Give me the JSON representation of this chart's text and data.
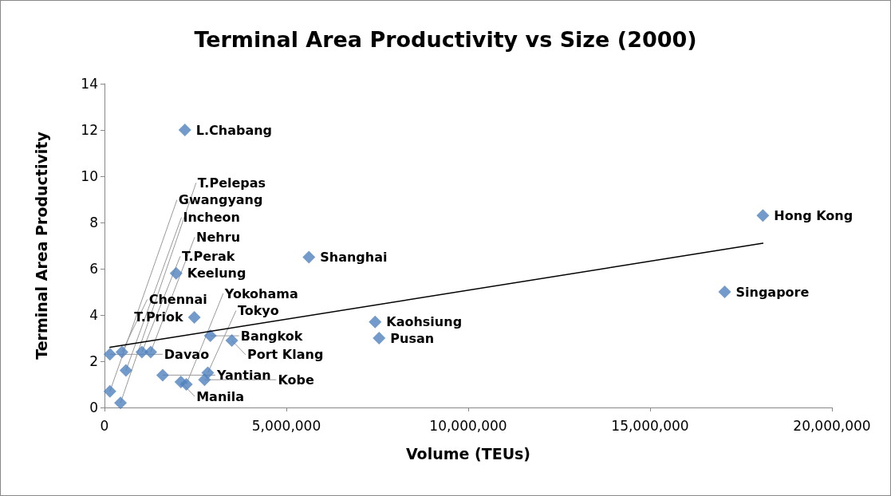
{
  "chart_data": {
    "type": "scatter",
    "title": "Terminal Area Productivity vs Size (2000)",
    "xlabel": "Volume (TEUs)",
    "ylabel": "Terminal Area Productivity",
    "xlim": [
      0,
      20000000
    ],
    "xticks": [
      {
        "value": 0,
        "label": "0"
      },
      {
        "value": 5000000,
        "label": "5,000,000"
      },
      {
        "value": 10000000,
        "label": "10,000,000"
      },
      {
        "value": 15000000,
        "label": "15,000,000"
      },
      {
        "value": 20000000,
        "label": "20,000,000"
      }
    ],
    "ylim": [
      0,
      14
    ],
    "yticks": [
      0,
      2,
      4,
      6,
      8,
      10,
      12,
      14
    ],
    "grid": false,
    "series": [
      {
        "color": "#4f81bd",
        "marker": "diamond",
        "x": [
          2210000,
          1970000,
          5620000,
          18100000,
          17050000,
          7440000,
          7550000,
          2470000,
          2910000,
          3500000,
          150000,
          480000,
          1030000,
          1270000,
          590000,
          1600000,
          2100000,
          2750000,
          2840000,
          2250000,
          150000,
          440000
        ],
        "values": [
          12.0,
          5.8,
          6.5,
          8.3,
          5.0,
          3.7,
          3.0,
          3.9,
          3.1,
          2.9,
          2.3,
          2.4,
          2.4,
          2.4,
          1.6,
          1.4,
          1.1,
          1.2,
          1.5,
          1.0,
          0.7,
          0.2
        ]
      },
      {
        "type": "line",
        "color": "#000000",
        "marker": "none",
        "line_style": "solid",
        "x": [
          150000,
          18100000
        ],
        "values": [
          2.6,
          7.1
        ]
      }
    ],
    "annotations": [
      {
        "text": "L.Chabang",
        "x": 2210000,
        "y": 12.0
      },
      {
        "text": "Keelung",
        "x": 1970000,
        "y": 5.8
      },
      {
        "text": "Shanghai",
        "x": 5620000,
        "y": 6.5
      },
      {
        "text": "Hong Kong",
        "x": 18100000,
        "y": 8.3
      },
      {
        "text": "Singapore",
        "x": 17050000,
        "y": 5.0
      },
      {
        "text": "Kaohsiung",
        "x": 7440000,
        "y": 3.7
      },
      {
        "text": "Pusan",
        "x": 7550000,
        "y": 3.0
      },
      {
        "text": "T.Priok",
        "x": 2470000,
        "y": 3.9
      },
      {
        "text": "Bangkok",
        "x": 2910000,
        "y": 3.1
      },
      {
        "text": "Port Klang",
        "x": 3500000,
        "y": 2.9
      },
      {
        "text": "Davao",
        "x": 150000,
        "y": 2.3
      },
      {
        "text": "Chennai",
        "x": 480000,
        "y": 2.4
      },
      {
        "text": "T.Perak",
        "x": 1030000,
        "y": 2.4
      },
      {
        "text": "Nehru",
        "x": 1270000,
        "y": 2.4
      },
      {
        "text": "Incheon",
        "x": 590000,
        "y": 1.6
      },
      {
        "text": "Yantian",
        "x": 1600000,
        "y": 1.4
      },
      {
        "text": "Manila",
        "x": 2100000,
        "y": 1.1
      },
      {
        "text": "Kobe",
        "x": 2750000,
        "y": 1.2
      },
      {
        "text": "Tokyo",
        "x": 2840000,
        "y": 1.5
      },
      {
        "text": "Yokohama",
        "x": 2250000,
        "y": 1.0
      },
      {
        "text": "Gwangyang",
        "x": 150000,
        "y": 0.7
      },
      {
        "text": "T.Pelepas",
        "x": 440000,
        "y": 0.2
      }
    ]
  }
}
